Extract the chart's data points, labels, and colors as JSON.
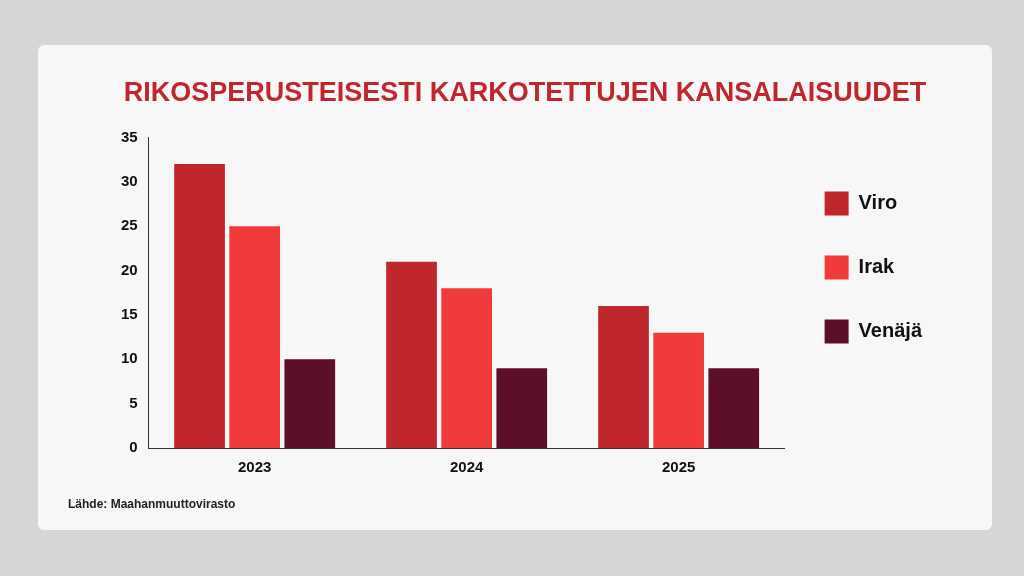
{
  "chart_data": {
    "type": "bar",
    "title": "RIKOSPERUSTEISESTI KARKOTETTUJEN KANSALAISUUDET",
    "categories": [
      "2023",
      "2024",
      "2025"
    ],
    "series": [
      {
        "name": "Viro",
        "color": "#c0272d",
        "values": [
          32,
          21,
          16
        ]
      },
      {
        "name": "Irak",
        "color": "#f03a3c",
        "values": [
          25,
          18,
          13
        ]
      },
      {
        "name": "Venäjä",
        "color": "#5c0f26",
        "values": [
          10,
          9,
          9
        ]
      }
    ],
    "ylim": [
      0,
      35
    ],
    "yticks": [
      0,
      5,
      10,
      15,
      20,
      25,
      30,
      35
    ],
    "grid": false,
    "legend": "right",
    "annotations": [
      "Lähde: Maahanmuuttovirasto"
    ]
  }
}
